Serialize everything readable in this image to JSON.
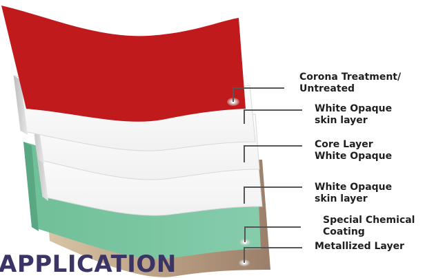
{
  "diagram": {
    "layers": [
      {
        "name": "Corona Treatment/ Untreated",
        "color": "#c01a1c"
      },
      {
        "name": "White Opaque skin layer",
        "color": "#ffffff"
      },
      {
        "name": "Core Layer White Opaque",
        "color": "#ffffff"
      },
      {
        "name": "White Opaque skin layer",
        "color": "#ffffff"
      },
      {
        "name": "Special Chemical Coating",
        "color": "#7ec7a3"
      },
      {
        "name": "Metallized Layer",
        "color": "#b5a083"
      }
    ],
    "labels": [
      {
        "line1": "Corona Treatment/",
        "line2": "Untreated"
      },
      {
        "line1": "White Opaque",
        "line2": "skin layer"
      },
      {
        "line1": "Core Layer",
        "line2": "White Opaque"
      },
      {
        "line1": "White Opaque",
        "line2": "skin layer"
      },
      {
        "line1": "Special Chemical",
        "line2": "Coating"
      },
      {
        "line1": "Metallized Layer",
        "line2": ""
      }
    ],
    "heading": "APPLICATION",
    "colors": {
      "callout_line": "#555555",
      "heading": "#3b3566",
      "dot": "#c8c8c8"
    }
  }
}
